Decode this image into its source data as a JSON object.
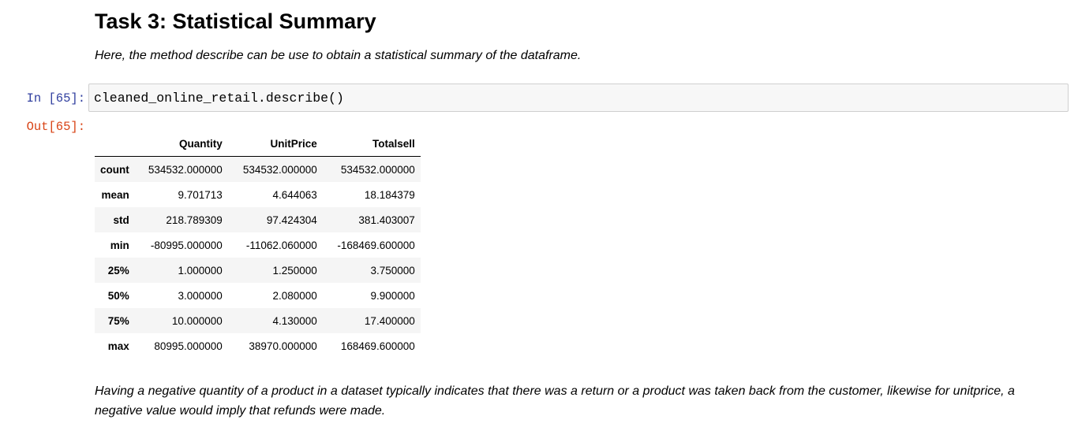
{
  "heading": "Task 3: Statistical Summary",
  "intro": "Here, the method describe can be use to obtain a statistical summary of the dataframe.",
  "input_cell": {
    "prompt": "In [65]:",
    "code": "cleaned_online_retail.describe()"
  },
  "output_cell": {
    "prompt": "Out[65]:"
  },
  "table": {
    "columns": [
      "",
      "Quantity",
      "UnitPrice",
      "Totalsell"
    ],
    "rows": [
      {
        "label": "count",
        "values": [
          "534532.000000",
          "534532.000000",
          "534532.000000"
        ]
      },
      {
        "label": "mean",
        "values": [
          "9.701713",
          "4.644063",
          "18.184379"
        ]
      },
      {
        "label": "std",
        "values": [
          "218.789309",
          "97.424304",
          "381.403007"
        ]
      },
      {
        "label": "min",
        "values": [
          "-80995.000000",
          "-11062.060000",
          "-168469.600000"
        ]
      },
      {
        "label": "25%",
        "values": [
          "1.000000",
          "1.250000",
          "3.750000"
        ]
      },
      {
        "label": "50%",
        "values": [
          "3.000000",
          "2.080000",
          "9.900000"
        ]
      },
      {
        "label": "75%",
        "values": [
          "10.000000",
          "4.130000",
          "17.400000"
        ]
      },
      {
        "label": "max",
        "values": [
          "80995.000000",
          "38970.000000",
          "168469.600000"
        ]
      }
    ]
  },
  "conclusion": "Having a negative quantity of a product in a dataset typically indicates that there was a return or a product was taken back from the customer, likewise for unitprice, a negative value would imply that refunds were made.",
  "colors": {
    "in_prompt": "#303f9f",
    "out_prompt": "#d84315",
    "code_background": "#f7f7f7"
  }
}
